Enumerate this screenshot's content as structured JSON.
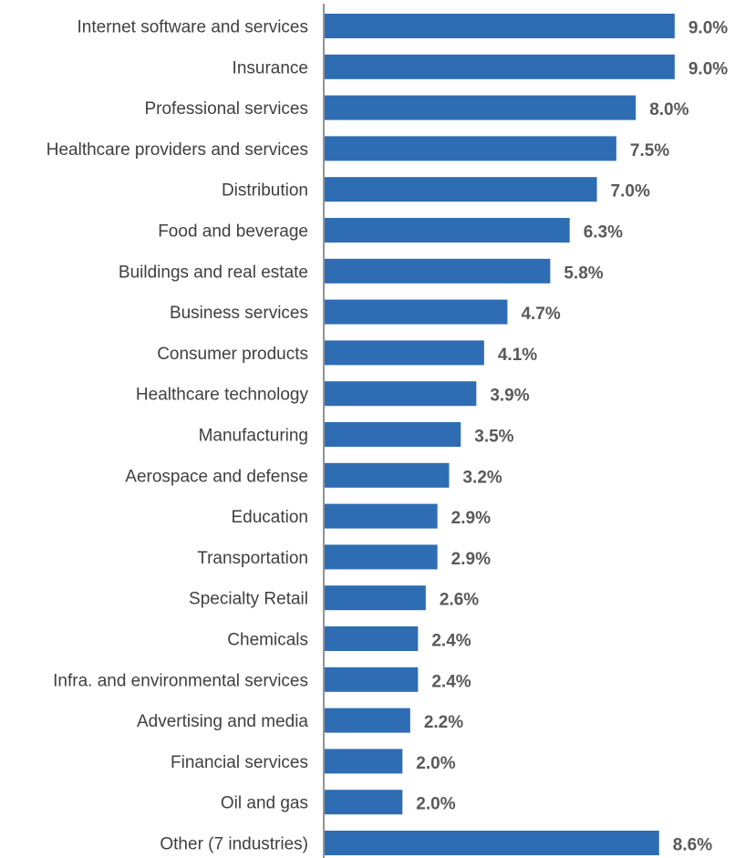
{
  "chart_data": {
    "type": "bar",
    "orientation": "horizontal",
    "categories": [
      "Internet software and services",
      "Insurance",
      "Professional services",
      "Healthcare providers and services",
      "Distribution",
      "Food and beverage",
      "Buildings and real estate",
      "Business services",
      "Consumer products",
      "Healthcare technology",
      "Manufacturing",
      "Aerospace and defense",
      "Education",
      "Transportation",
      "Specialty Retail",
      "Chemicals",
      "Infra. and environmental services",
      "Advertising and media",
      "Financial services",
      "Oil and gas",
      "Other (7 industries)"
    ],
    "values": [
      9.0,
      9.0,
      8.0,
      7.5,
      7.0,
      6.3,
      5.8,
      4.7,
      4.1,
      3.9,
      3.5,
      3.2,
      2.9,
      2.9,
      2.6,
      2.4,
      2.4,
      2.2,
      2.0,
      2.0,
      8.6
    ],
    "value_labels": [
      "9.0%",
      "9.0%",
      "8.0%",
      "7.5%",
      "7.0%",
      "6.3%",
      "5.8%",
      "4.7%",
      "4.1%",
      "3.9%",
      "3.5%",
      "3.2%",
      "2.9%",
      "2.9%",
      "2.6%",
      "2.4%",
      "2.4%",
      "2.2%",
      "2.0%",
      "2.0%",
      "8.6%"
    ],
    "unit": "%",
    "title": "",
    "xlabel": "",
    "ylabel": "",
    "xlim": [
      0,
      9.0
    ],
    "grid": false,
    "legend": "none",
    "bar_color": "#2E6DB4",
    "axis_color": "#595959"
  }
}
